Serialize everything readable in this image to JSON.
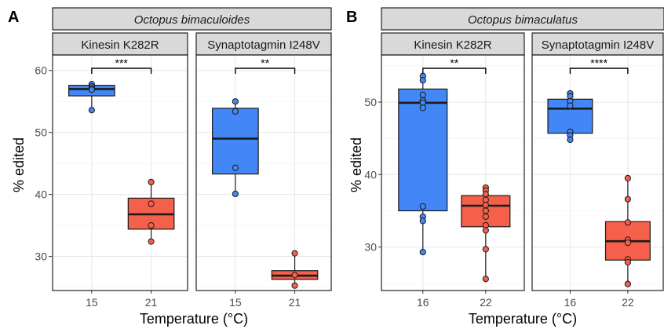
{
  "colors": {
    "low_temp_fill": "#4287f5",
    "high_temp_fill": "#f5604a",
    "outline": "#1a1a1a"
  },
  "chart_data": [
    {
      "panel_tag": "A",
      "type": "box",
      "species": "Octopus bimaculoides",
      "xlabel": "Temperature (°C)",
      "ylabel": "% edited",
      "ylim": [
        24.5,
        62.5
      ],
      "yticks": [
        30,
        40,
        50,
        60
      ],
      "grid": true,
      "facets": [
        {
          "gene": "Kinesin K282R",
          "categories": [
            "15",
            "21"
          ],
          "significance": "***",
          "groups": [
            {
              "temp": "15",
              "q1": 55.9,
              "median": 57.0,
              "q3": 57.6,
              "whisker_low": 53.6,
              "whisker_high": 57.8,
              "points": [
                57.8,
                57.4,
                57.1,
                56.9,
                53.6
              ]
            },
            {
              "temp": "21",
              "q1": 34.4,
              "median": 36.8,
              "q3": 39.4,
              "whisker_low": 32.4,
              "whisker_high": 42.0,
              "points": [
                42.0,
                38.5,
                35.0,
                32.4
              ]
            }
          ]
        },
        {
          "gene": "Synaptotagmin I248V",
          "categories": [
            "15",
            "21"
          ],
          "significance": "**",
          "groups": [
            {
              "temp": "15",
              "q1": 43.3,
              "median": 49.0,
              "q3": 53.9,
              "whisker_low": 40.1,
              "whisker_high": 55.0,
              "points": [
                55.0,
                53.4,
                44.3,
                40.1
              ]
            },
            {
              "temp": "21",
              "q1": 26.3,
              "median": 26.9,
              "q3": 27.7,
              "whisker_low": 25.3,
              "whisker_high": 30.5,
              "points": [
                30.5,
                27.0,
                25.3
              ]
            }
          ]
        }
      ]
    },
    {
      "panel_tag": "B",
      "type": "box",
      "species": "Octopus bimaculatus",
      "xlabel": "Temperature (°C)",
      "ylabel": "% edited",
      "ylim": [
        24.0,
        56.5
      ],
      "yticks": [
        30,
        40,
        50
      ],
      "grid": true,
      "facets": [
        {
          "gene": "Kinesin K282R",
          "categories": [
            "16",
            "22"
          ],
          "significance": "**",
          "groups": [
            {
              "temp": "16",
              "q1": 35.0,
              "median": 49.9,
              "q3": 51.8,
              "whisker_low": 29.3,
              "whisker_high": 53.6,
              "points": [
                53.6,
                53.0,
                51.0,
                50.2,
                49.9,
                49.2,
                35.6,
                34.2,
                33.6,
                29.3
              ]
            },
            {
              "temp": "22",
              "q1": 32.8,
              "median": 35.7,
              "q3": 37.1,
              "whisker_low": 25.6,
              "whisker_high": 38.2,
              "points": [
                38.2,
                37.8,
                37.3,
                36.5,
                35.8,
                35.0,
                34.2,
                33.0,
                32.3,
                29.7,
                25.6
              ]
            }
          ]
        },
        {
          "gene": "Synaptotagmin I248V",
          "categories": [
            "16",
            "22"
          ],
          "significance": "****",
          "groups": [
            {
              "temp": "16",
              "q1": 45.7,
              "median": 49.1,
              "q3": 50.4,
              "whisker_low": 44.8,
              "whisker_high": 51.2,
              "points": [
                51.2,
                50.8,
                50.1,
                49.5,
                45.9,
                45.4,
                44.8
              ]
            },
            {
              "temp": "22",
              "q1": 28.2,
              "median": 30.8,
              "q3": 33.5,
              "whisker_low": 24.9,
              "whisker_high": 39.5,
              "points": [
                39.5,
                36.6,
                33.4,
                31.0,
                30.6,
                28.3,
                27.9,
                24.9
              ]
            }
          ]
        }
      ]
    }
  ]
}
